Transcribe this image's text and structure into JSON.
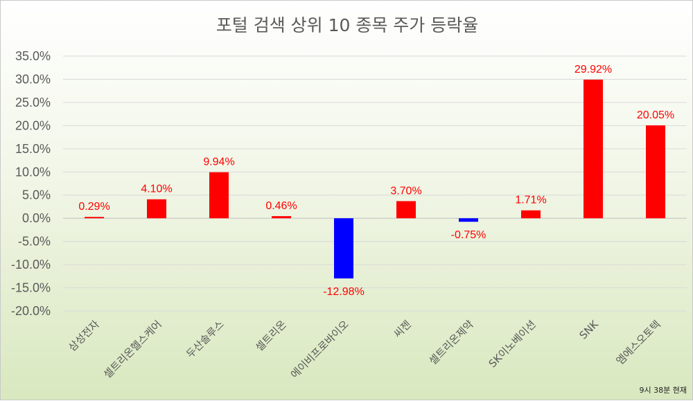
{
  "chart_data": {
    "type": "bar",
    "title": "포털 검색 상위 10 종목 주가 등락율",
    "categories": [
      "삼성전자",
      "셀트리온헬스케어",
      "두산솔루스",
      "셀트리온",
      "에이비프로바이오",
      "씨젠",
      "셀트리온제약",
      "SK이노베이션",
      "SNK",
      "엠에스오토텍"
    ],
    "values": [
      0.29,
      4.1,
      9.94,
      0.46,
      -12.98,
      3.7,
      -0.75,
      1.71,
      29.92,
      20.05
    ],
    "data_labels": [
      "0.29%",
      "4.10%",
      "9.94%",
      "0.46%",
      "-12.98%",
      "3.70%",
      "-0.75%",
      "1.71%",
      "29.92%",
      "20.05%"
    ],
    "ylim": [
      -20,
      35
    ],
    "yticks": [
      35,
      30,
      25,
      20,
      15,
      10,
      5,
      0,
      -5,
      -10,
      -15,
      -20
    ],
    "ytick_labels": [
      "35.0%",
      "30.0%",
      "25.0%",
      "20.0%",
      "15.0%",
      "10.0%",
      "5.0%",
      "0.0%",
      "-5.0%",
      "-10.0%",
      "-15.0%",
      "-20.0%"
    ],
    "grid": true,
    "legend": "none",
    "colors": {
      "positive": "#ff0000",
      "negative": "#0000ff",
      "label": "#ff0000"
    }
  },
  "footnote": "9시 38분 현재"
}
